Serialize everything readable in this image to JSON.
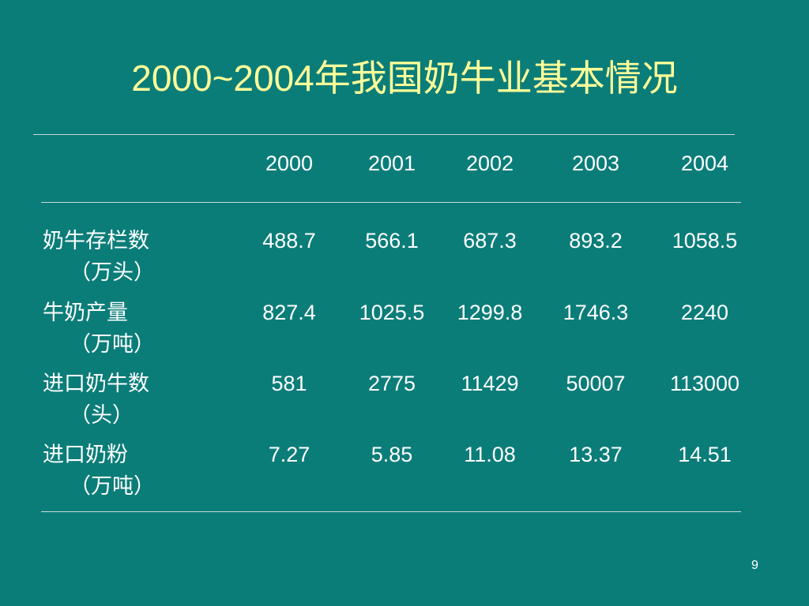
{
  "title": "2000~2004年我国奶牛业基本情况",
  "table": {
    "header": [
      "2000",
      "2001",
      "2002",
      "2003",
      "2004"
    ],
    "rows": [
      {
        "label": "奶牛存栏数",
        "unit": "（万头）",
        "values": [
          "488.7",
          "566.1",
          "687.3",
          "893.2",
          "1058.5"
        ]
      },
      {
        "label": "牛奶产量",
        "unit": "（万吨）",
        "values": [
          "827.4",
          "1025.5",
          "1299.8",
          "1746.3",
          "2240"
        ]
      },
      {
        "label": "进口奶牛数",
        "unit": "（头）",
        "values": [
          "581",
          "2775",
          "11429",
          "50007",
          "113000"
        ]
      },
      {
        "label": "进口奶粉",
        "unit": "（万吨）",
        "values": [
          "7.27",
          "5.85",
          "11.08",
          "13.37",
          "14.51"
        ]
      }
    ]
  },
  "page_number": "9"
}
